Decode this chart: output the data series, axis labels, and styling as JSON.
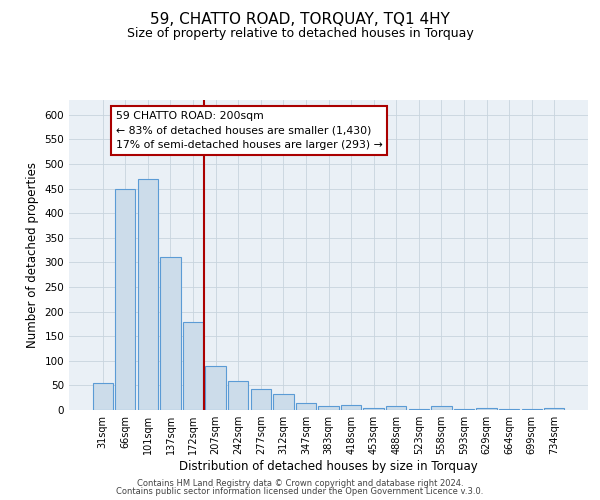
{
  "title": "59, CHATTO ROAD, TORQUAY, TQ1 4HY",
  "subtitle": "Size of property relative to detached houses in Torquay",
  "xlabel": "Distribution of detached houses by size in Torquay",
  "ylabel": "Number of detached properties",
  "bar_labels": [
    "31sqm",
    "66sqm",
    "101sqm",
    "137sqm",
    "172sqm",
    "207sqm",
    "242sqm",
    "277sqm",
    "312sqm",
    "347sqm",
    "383sqm",
    "418sqm",
    "453sqm",
    "488sqm",
    "523sqm",
    "558sqm",
    "593sqm",
    "629sqm",
    "664sqm",
    "699sqm",
    "734sqm"
  ],
  "bar_values": [
    55,
    450,
    470,
    310,
    178,
    90,
    58,
    42,
    32,
    15,
    8,
    10,
    5,
    8,
    3,
    8,
    2,
    5,
    3,
    2,
    5
  ],
  "bar_color": "#ccdcea",
  "bar_edge_color": "#5b9bd5",
  "vline_x": 4.5,
  "vline_color": "#aa0000",
  "annotation_title": "59 CHATTO ROAD: 200sqm",
  "annotation_line1": "← 83% of detached houses are smaller (1,430)",
  "annotation_line2": "17% of semi-detached houses are larger (293) →",
  "annotation_box_facecolor": "#ffffff",
  "annotation_box_edgecolor": "#aa0000",
  "ylim": [
    0,
    630
  ],
  "yticks": [
    0,
    50,
    100,
    150,
    200,
    250,
    300,
    350,
    400,
    450,
    500,
    550,
    600
  ],
  "footer1": "Contains HM Land Registry data © Crown copyright and database right 2024.",
  "footer2": "Contains public sector information licensed under the Open Government Licence v.3.0.",
  "grid_color": "#c8d4de",
  "bg_color": "#eaf0f6",
  "title_fontsize": 11,
  "subtitle_fontsize": 9,
  "bar_width": 0.9
}
